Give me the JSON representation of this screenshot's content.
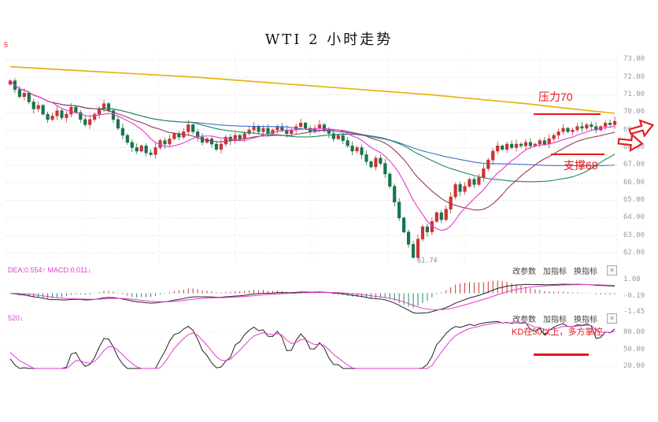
{
  "title": "WTI 2 小时走势",
  "corner_label": "5",
  "price_axis": [
    "73.00",
    "72.00",
    "71.00",
    "70.00",
    "69.00",
    "68.00",
    "67.00",
    "66.00",
    "65.00",
    "64.00",
    "63.00",
    "62.00"
  ],
  "annotations": {
    "resistance": "压力70",
    "support": "支撑68",
    "kd_note": "KD在50以上，多方掌控",
    "low_label": "61.74"
  },
  "macd_panel": {
    "indicator_label": "DEA:0.554↑ MACD:0.011↓",
    "controls": [
      "改参数",
      "加指标",
      "换指标"
    ],
    "close_label": "×",
    "axis": [
      "1.08",
      "-0.19",
      "-1.45"
    ]
  },
  "kd_panel": {
    "indicator_label": "520↓",
    "controls": [
      "改参数",
      "加指标",
      "换指标"
    ],
    "close_label": "×",
    "axis": [
      "80.00",
      "50.00",
      "20.00"
    ]
  },
  "colors": {
    "up": "#cc3333",
    "down": "#17754b",
    "ma_yellow": "#e7b312",
    "ma_magenta": "#e23ad0",
    "ma_maroon": "#9a3b5c",
    "ma_green": "#1f8a5a",
    "ma_blue": "#3f6fd0",
    "annotation_red": "#e81515",
    "hist_up": "#cc3333",
    "hist_down": "#1f8a5a"
  },
  "chart_data": {
    "type": "candlestick",
    "title": "WTI 2 小时走势",
    "interval": "2小时",
    "ylim": [
      61.35,
      73.35
    ],
    "low_point": 61.74,
    "closes": [
      71.8,
      71.3,
      70.9,
      71.1,
      70.6,
      70.2,
      70.4,
      69.9,
      69.6,
      69.8,
      70.1,
      69.7,
      69.9,
      70.3,
      70.0,
      69.6,
      69.3,
      69.6,
      69.9,
      70.2,
      70.5,
      70.1,
      69.6,
      69.1,
      68.7,
      68.3,
      68.0,
      67.8,
      68.1,
      67.7,
      67.6,
      68.0,
      68.4,
      68.2,
      68.5,
      68.8,
      68.6,
      68.9,
      69.3,
      68.9,
      68.6,
      68.3,
      68.5,
      68.2,
      67.9,
      68.2,
      68.6,
      68.4,
      68.7,
      68.5,
      68.8,
      69.0,
      69.2,
      68.9,
      69.1,
      68.8,
      69.0,
      69.2,
      69.0,
      68.8,
      69.0,
      69.2,
      69.4,
      69.1,
      68.9,
      69.1,
      69.3,
      69.0,
      68.8,
      68.5,
      68.7,
      68.4,
      68.1,
      67.8,
      68.0,
      67.6,
      67.2,
      66.9,
      67.4,
      67.1,
      66.5,
      65.8,
      64.9,
      64.0,
      63.2,
      62.5,
      61.74,
      62.8,
      63.5,
      63.2,
      63.8,
      64.3,
      63.9,
      64.5,
      65.2,
      65.9,
      65.5,
      65.8,
      66.2,
      65.9,
      66.3,
      66.8,
      67.3,
      67.8,
      68.1,
      67.9,
      68.2,
      68.0,
      68.2,
      68.1,
      68.3,
      68.1,
      68.2,
      68.4,
      68.2,
      68.5,
      68.7,
      68.9,
      69.1,
      68.9,
      69.0,
      69.2,
      69.1,
      69.3,
      69.2,
      69.0,
      69.2,
      69.4,
      69.3,
      69.5
    ],
    "yellow_ma": [
      72.6,
      72.45,
      72.3,
      72.15,
      72.0,
      71.8,
      71.6,
      71.4,
      71.2,
      71.0,
      70.75,
      70.5,
      70.2,
      69.95
    ],
    "ma_windows": {
      "magenta": 10,
      "maroon": 20,
      "green": 40,
      "blue": 60
    },
    "indicators": {
      "macd_axis": [
        1.08,
        -0.19,
        -1.45
      ],
      "kd_axis": [
        80,
        50,
        20
      ]
    }
  }
}
